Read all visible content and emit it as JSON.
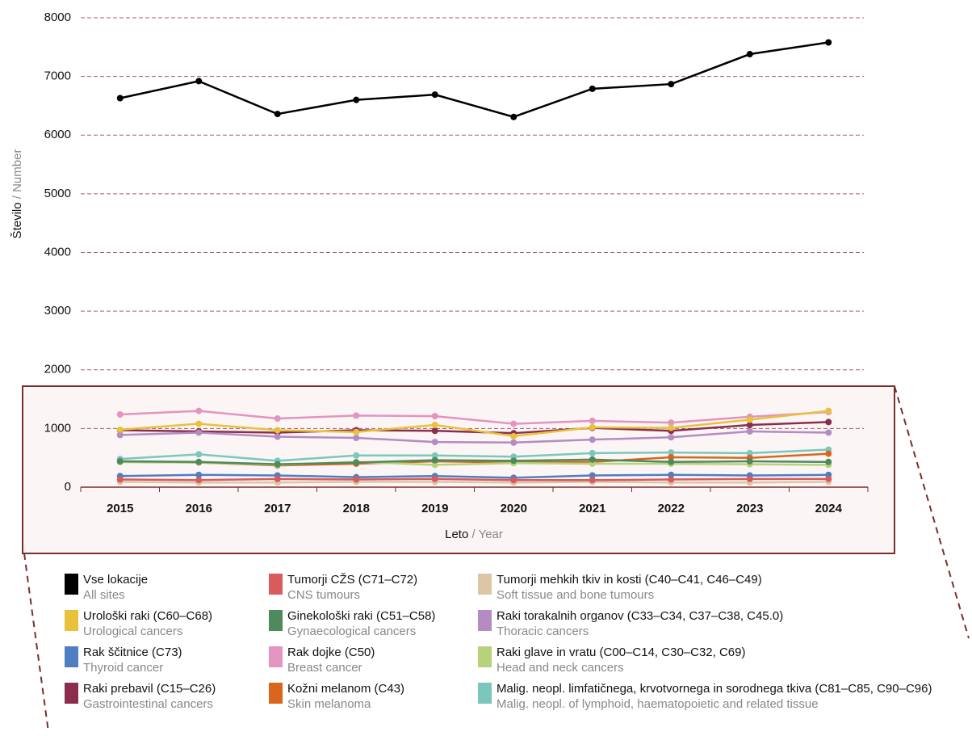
{
  "chart_data": {
    "type": "line",
    "ylabel": "Število",
    "ylabel_en": "/ Number",
    "xlabel": "Leto",
    "xlabel_en": "/ Year",
    "categories": [
      "2015",
      "2016",
      "2017",
      "2018",
      "2019",
      "2020",
      "2021",
      "2022",
      "2023",
      "2024"
    ],
    "ylim": [
      0,
      8000
    ],
    "yticks": [
      0,
      1000,
      2000,
      3000,
      4000,
      5000,
      6000,
      7000,
      8000
    ],
    "grid": true,
    "series": [
      {
        "name": "Vse lokacije",
        "name_en": "All sites",
        "color": "#000000",
        "values": [
          6630,
          6920,
          6360,
          6600,
          6690,
          6310,
          6790,
          6870,
          7380,
          7580
        ]
      },
      {
        "name": "Tumorji CŽS (C71–C72)",
        "name_en": "CNS tumours",
        "color": "#d95b5b",
        "values": [
          130,
          120,
          140,
          130,
          140,
          120,
          120,
          130,
          140,
          140
        ]
      },
      {
        "name": "Tumorji mehkih tkiv in kosti (C40–C41, C46–C49)",
        "name_en": "Soft tissue and bone tumours",
        "color": "#dcc6a6",
        "values": [
          90,
          80,
          80,
          90,
          90,
          80,
          90,
          80,
          80,
          90
        ]
      },
      {
        "name": "Urološki raki (C60–C68)",
        "name_en": "Urological cancers",
        "color": "#e8c23a",
        "values": [
          980,
          1080,
          970,
          940,
          1060,
          870,
          1020,
          1010,
          1150,
          1300
        ]
      },
      {
        "name": "Ginekološki raki (C51–C58)",
        "name_en": "Gynaecological cancers",
        "color": "#4e8a5d",
        "values": [
          440,
          430,
          390,
          420,
          460,
          450,
          470,
          430,
          440,
          430
        ]
      },
      {
        "name": "Raki torakalnih organov (C33–C34, C37–C38, C45.0)",
        "name_en": "Thoracic cancers",
        "color": "#b48bc2",
        "values": [
          890,
          930,
          860,
          840,
          770,
          760,
          810,
          850,
          950,
          930
        ]
      },
      {
        "name": "Rak ščitnice (C73)",
        "name_en": "Thyroid cancer",
        "color": "#4e7fc0",
        "values": [
          190,
          210,
          200,
          170,
          190,
          160,
          200,
          210,
          200,
          210
        ]
      },
      {
        "name": "Rak dojke (C50)",
        "name_en": "Breast cancer",
        "color": "#e394bf",
        "values": [
          1240,
          1300,
          1170,
          1220,
          1210,
          1080,
          1130,
          1100,
          1200,
          1280
        ]
      },
      {
        "name": "Raki glave in vratu (C00–C14, C30–C32, C69)",
        "name_en": "Head and neck cancers",
        "color": "#b6d37c",
        "values": [
          430,
          420,
          380,
          430,
          380,
          410,
          400,
          400,
          390,
          380
        ]
      },
      {
        "name": "Raki prebavil (C15–C26)",
        "name_en": "Gastrointestinal cancers",
        "color": "#8b2e4e",
        "values": [
          970,
          950,
          930,
          970,
          960,
          920,
          1010,
          960,
          1060,
          1110
        ]
      },
      {
        "name": "Kožni melanom (C43)",
        "name_en": "Skin melanoma",
        "color": "#d9661c",
        "values": [
          430,
          420,
          370,
          400,
          440,
          420,
          430,
          510,
          500,
          570
        ]
      },
      {
        "name": "Malig. neopl. limfatičnega, krvotvornega in sorodnega tkiva (C81–C85, C90–C96)",
        "name_en": "Malig. neopl. of lymphoid, haematopoietic and related tissue",
        "color": "#7cc7bb",
        "values": [
          480,
          560,
          450,
          540,
          540,
          520,
          580,
          590,
          580,
          640
        ]
      }
    ]
  }
}
